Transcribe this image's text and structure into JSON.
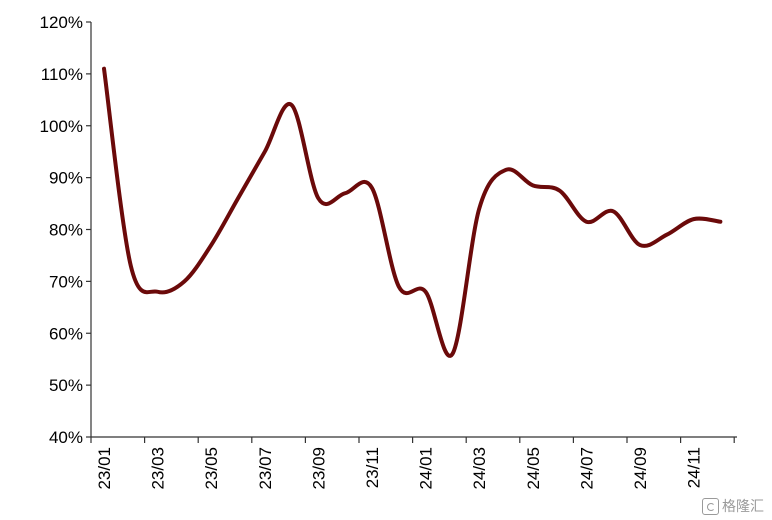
{
  "chart_data": {
    "type": "line",
    "title": "",
    "xlabel": "",
    "ylabel": "",
    "ylim": [
      0.4,
      1.2
    ],
    "y_ticks": [
      0.4,
      0.5,
      0.6,
      0.7,
      0.8,
      0.9,
      1.0,
      1.1,
      1.2
    ],
    "y_tick_labels": [
      "40%",
      "50%",
      "60%",
      "70%",
      "80%",
      "90%",
      "100%",
      "110%",
      "120%"
    ],
    "x_tick_labels": [
      "23/01",
      "23/03",
      "23/05",
      "23/07",
      "23/09",
      "23/11",
      "24/01",
      "24/03",
      "24/05",
      "24/07",
      "24/09",
      "24/11"
    ],
    "grid": false,
    "line_color": "#6b0a0a",
    "series": [
      {
        "x": [
          "23/01",
          "23/02",
          "23/03",
          "23/04",
          "23/05",
          "23/06",
          "23/07",
          "23/08",
          "23/09",
          "23/10",
          "23/11",
          "23/12",
          "24/01",
          "24/02",
          "24/03",
          "24/04",
          "24/05",
          "24/06",
          "24/07",
          "24/08",
          "24/09",
          "24/10",
          "24/11",
          "24/12"
        ],
        "values": [
          1.11,
          0.73,
          0.68,
          0.7,
          0.77,
          0.86,
          0.95,
          1.04,
          0.86,
          0.87,
          0.88,
          0.69,
          0.68,
          0.56,
          0.84,
          0.915,
          0.885,
          0.875,
          0.815,
          0.835,
          0.77,
          0.79,
          0.82,
          0.815
        ]
      }
    ]
  },
  "watermark": {
    "text": "格隆汇",
    "icon": "watermark-logo-icon"
  }
}
